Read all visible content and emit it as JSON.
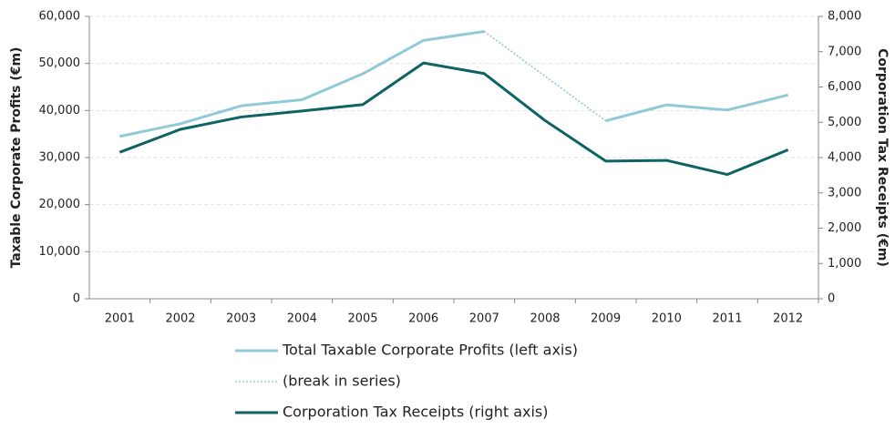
{
  "chart_data": {
    "type": "line",
    "categories": [
      "2001",
      "2002",
      "2003",
      "2004",
      "2005",
      "2006",
      "2007",
      "2008",
      "2009",
      "2010",
      "2011",
      "2012"
    ],
    "series": [
      {
        "name": "Total Taxable Corporate Profits (left axis)",
        "color": "#92c9d8",
        "style": "solid",
        "values": [
          34500,
          37200,
          41000,
          42300,
          47800,
          54900,
          56800,
          null,
          37800,
          41200,
          40100,
          43300
        ]
      },
      {
        "name": "(break in series)",
        "color": "#92c9d8",
        "style": "dotted",
        "values": [
          null,
          null,
          null,
          null,
          null,
          null,
          56800,
          47300,
          37800,
          null,
          null,
          null
        ]
      },
      {
        "name": "Corporation Tax Receipts (right axis)",
        "color": "#0e6363",
        "style": "solid",
        "axis": "y2",
        "values": [
          4150,
          4800,
          5150,
          5320,
          5500,
          6680,
          6380,
          5050,
          3900,
          3920,
          3520,
          4220
        ]
      }
    ],
    "ylabel": "Taxable Corporate Profits (€m)",
    "y2label": "Corporation Tax Receipts (€m)",
    "ylim": [
      0,
      60000
    ],
    "yticks": [
      0,
      {
        "value": 10000,
        "label": "10,000"
      },
      {
        "value": 20000,
        "label": "20,000"
      },
      {
        "value": 30000,
        "label": "30,000"
      },
      {
        "value": 40000,
        "label": "40,000"
      },
      {
        "value": 50000,
        "label": "50,000"
      },
      {
        "value": 60000,
        "label": "60,000"
      }
    ],
    "y2lim": [
      0,
      8000
    ],
    "y2ticks": [
      0,
      {
        "value": 1000,
        "label": "1,000"
      },
      {
        "value": 2000,
        "label": "2,000"
      },
      {
        "value": 3000,
        "label": "3,000"
      },
      {
        "value": 4000,
        "label": "4,000"
      },
      {
        "value": 5000,
        "label": "5,000"
      },
      {
        "value": 6000,
        "label": "6,000"
      },
      {
        "value": 7000,
        "label": "7,000"
      },
      {
        "value": 8000,
        "label": "8,000"
      }
    ],
    "grid": true
  }
}
